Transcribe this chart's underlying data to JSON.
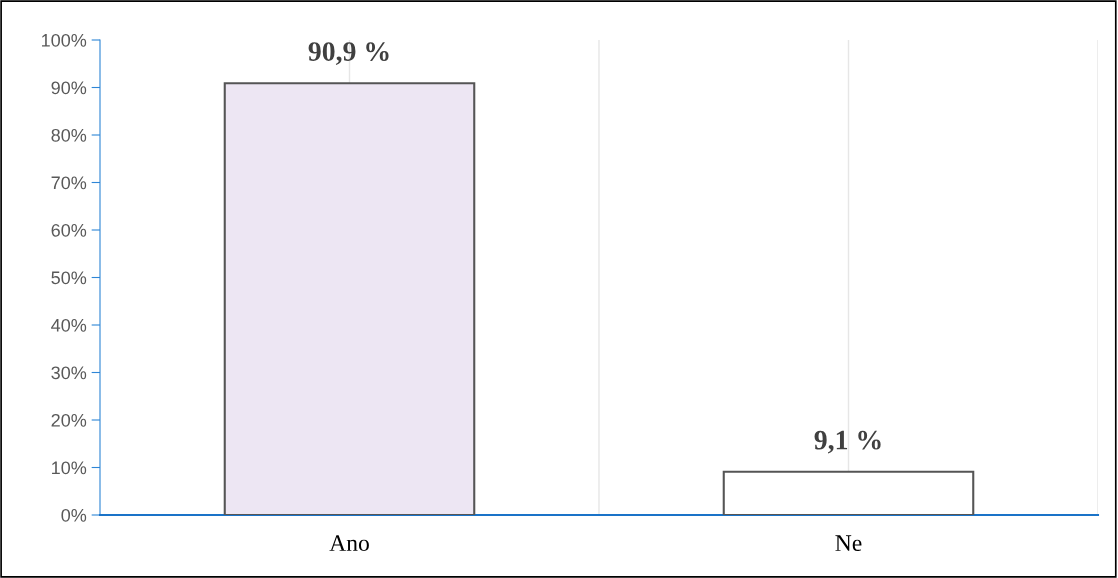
{
  "chart_data": {
    "type": "bar",
    "categories": [
      "Ano",
      "Ne"
    ],
    "values": [
      90.9,
      9.1
    ],
    "colors": [
      "#ede6f3",
      "#ffffff"
    ],
    "value_labels": [
      "90,9 %",
      "9,1 %"
    ],
    "ylim": [
      0,
      100
    ],
    "yticks": [
      {
        "value": 0,
        "label": "0%"
      },
      {
        "value": 10,
        "label": "10%"
      },
      {
        "value": 20,
        "label": "20%"
      },
      {
        "value": 30,
        "label": "30%"
      },
      {
        "value": 40,
        "label": "40%"
      },
      {
        "value": 50,
        "label": "50%"
      },
      {
        "value": 60,
        "label": "60%"
      },
      {
        "value": 70,
        "label": "70%"
      },
      {
        "value": 80,
        "label": "80%"
      },
      {
        "value": 90,
        "label": "90%"
      },
      {
        "value": 100,
        "label": "100%"
      }
    ],
    "grid": "x"
  }
}
